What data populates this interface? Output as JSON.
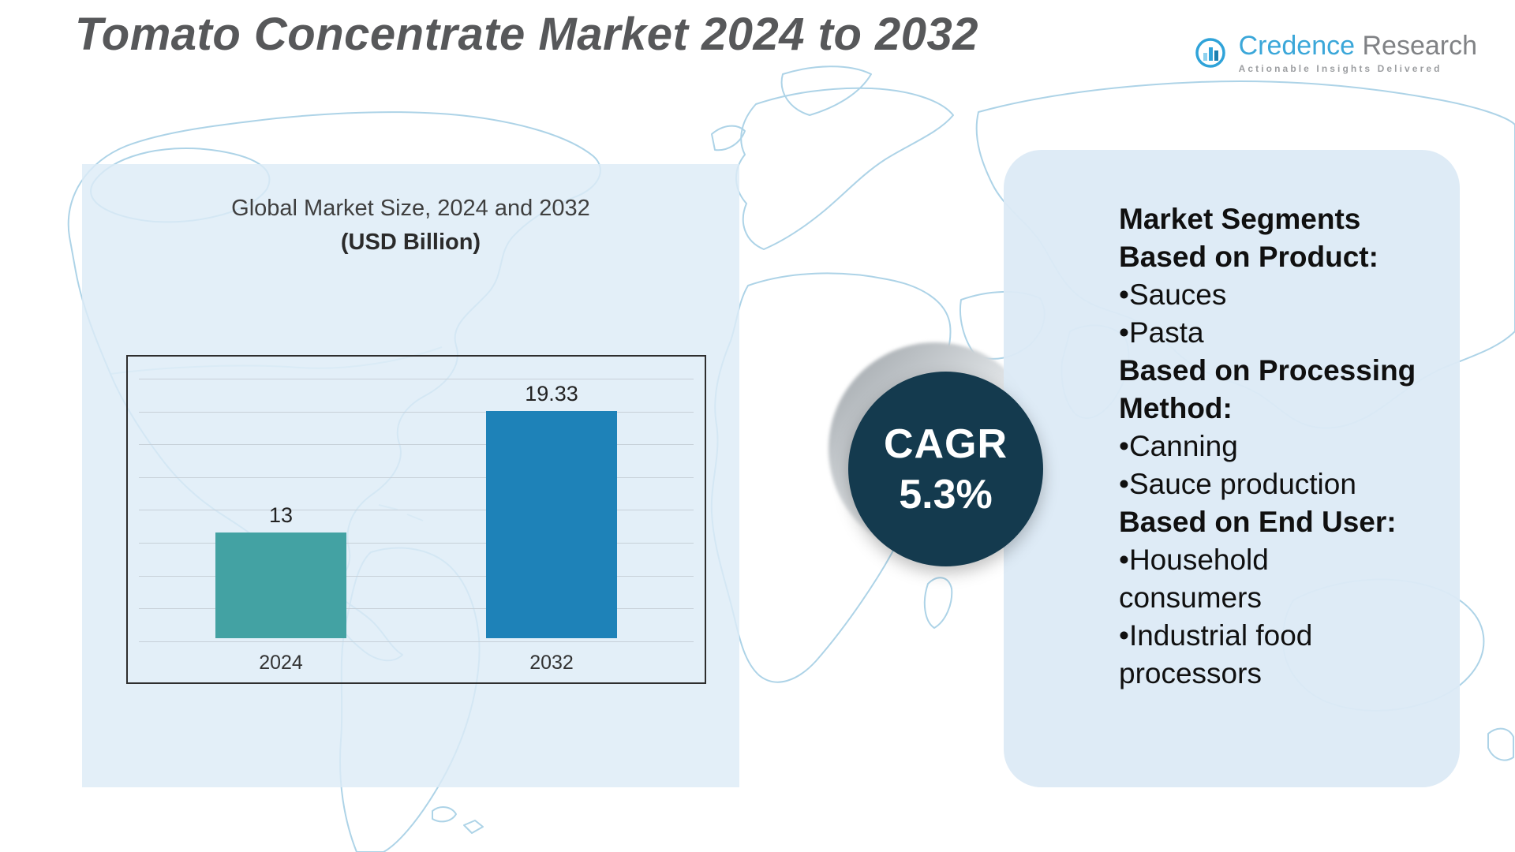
{
  "page": {
    "title": "Tomato Concentrate Market 2024 to 2032"
  },
  "logo": {
    "brand_first": "Credence",
    "brand_second": "Research",
    "tagline": "Actionable Insights Delivered"
  },
  "chart_data": {
    "type": "bar",
    "title": "Global Market Size, 2024 and 2032",
    "subtitle": "(USD Billion)",
    "unit": "USD Billion",
    "categories": [
      "2024",
      "2032"
    ],
    "values": [
      13,
      19.33
    ],
    "value_labels": [
      "13",
      "19.33"
    ],
    "bar_colors": [
      "#43a2a3",
      "#1e82b8"
    ],
    "ylim": [
      7.5,
      20
    ],
    "gridline_count": 9,
    "grid": "horizontal",
    "legend": "none"
  },
  "cagr": {
    "label": "CAGR",
    "value": "5.3%"
  },
  "segments": {
    "items": [
      {
        "type": "heading",
        "text": "Market Segments\nBased on Product:"
      },
      {
        "type": "bullet",
        "text": "•Sauces"
      },
      {
        "type": "bullet",
        "text": "•Pasta"
      },
      {
        "type": "heading",
        "text": "Based on Processing\nMethod:"
      },
      {
        "type": "bullet",
        "text": "•Canning"
      },
      {
        "type": "bullet",
        "text": "•Sauce production"
      },
      {
        "type": "heading",
        "text": "Based on End User:"
      },
      {
        "type": "bullet",
        "text": "•Household\nconsumers"
      },
      {
        "type": "bullet",
        "text": "•Industrial food\nprocessors"
      }
    ]
  }
}
